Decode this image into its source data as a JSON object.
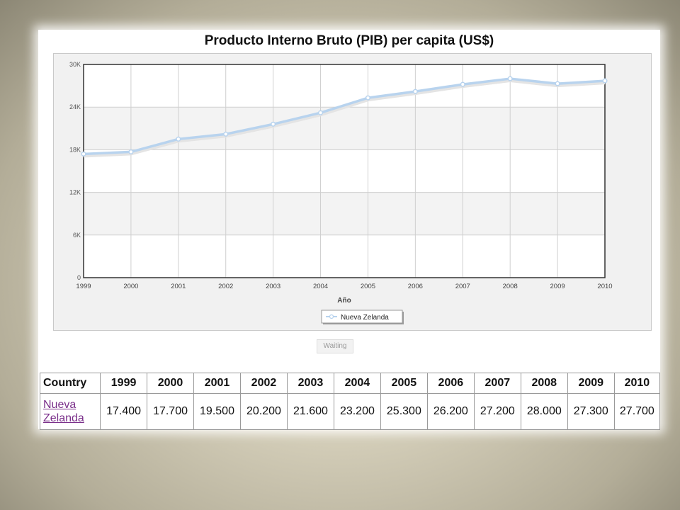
{
  "title": "Producto Interno Bruto (PIB) per capita (US$)",
  "waiting_label": "Waiting",
  "chart_data": {
    "type": "line",
    "title": "Producto Interno Bruto (PIB) per capita (US$)",
    "xlabel": "Año",
    "ylabel": "",
    "x": [
      "1999",
      "2000",
      "2001",
      "2002",
      "2003",
      "2004",
      "2005",
      "2006",
      "2007",
      "2008",
      "2009",
      "2010"
    ],
    "series": [
      {
        "name": "Nueva Zelanda",
        "values": [
          17400,
          17700,
          19500,
          20200,
          21600,
          23200,
          25300,
          26200,
          27200,
          28000,
          27300,
          27700
        ],
        "color": "#b8d3ee"
      }
    ],
    "ylim": [
      0,
      30000
    ],
    "yticks": [
      0,
      6000,
      12000,
      18000,
      24000,
      30000
    ],
    "ytick_labels": [
      "0",
      "6K",
      "12K",
      "18K",
      "24K",
      "30K"
    ],
    "grid": true,
    "legend_position": "bottom-center"
  },
  "table": {
    "headers": [
      "Country",
      "1999",
      "2000",
      "2001",
      "2002",
      "2003",
      "2004",
      "2005",
      "2006",
      "2007",
      "2008",
      "2009",
      "2010"
    ],
    "country_link": "Nueva Zelanda",
    "values": [
      "17.400",
      "17.700",
      "19.500",
      "20.200",
      "21.600",
      "23.200",
      "25.300",
      "26.200",
      "27.200",
      "28.000",
      "27.300",
      "27.700"
    ]
  }
}
